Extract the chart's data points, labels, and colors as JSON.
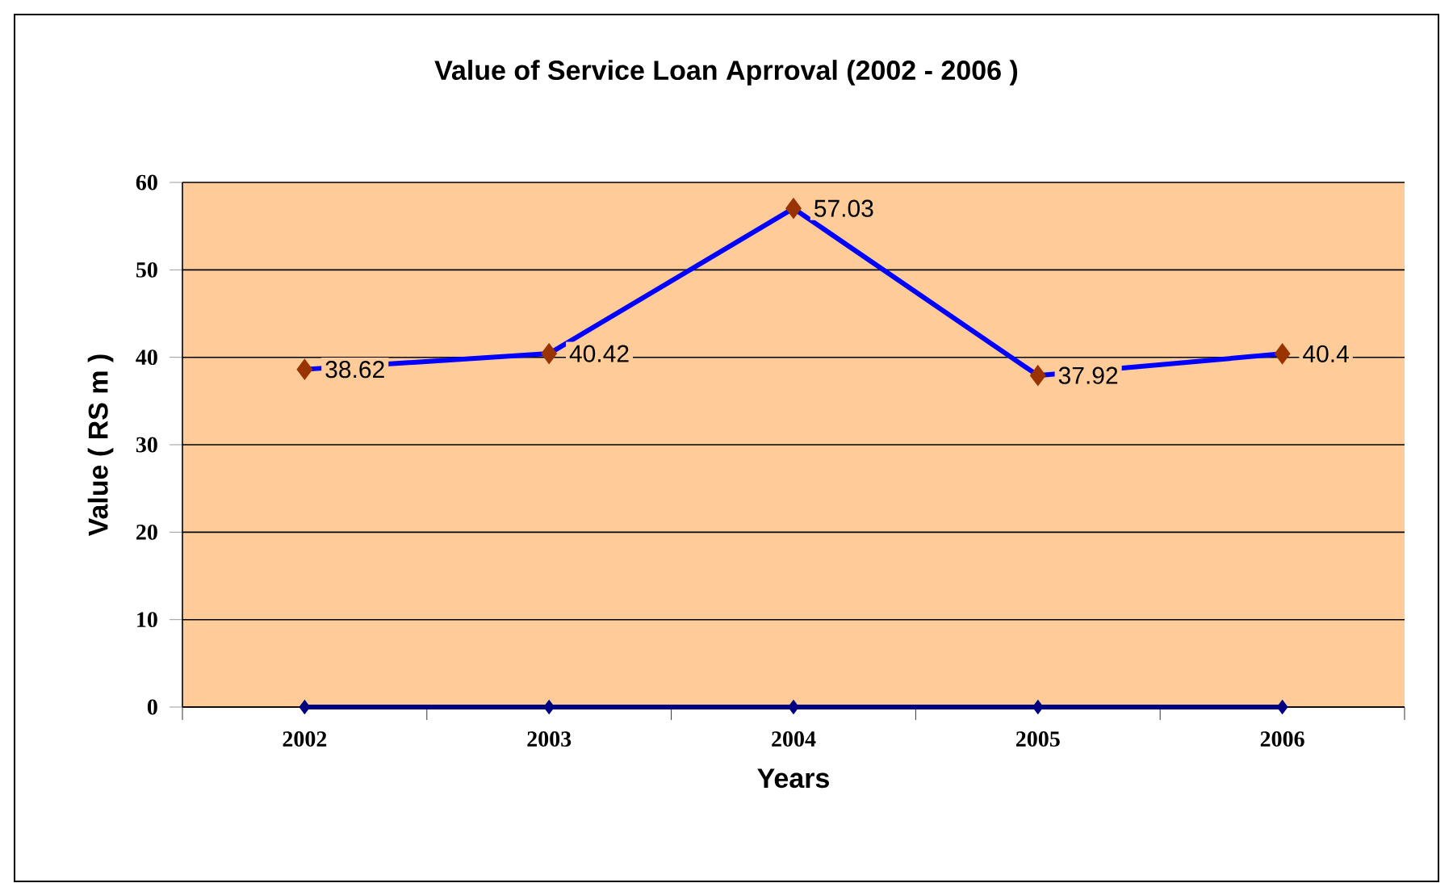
{
  "chart_data": {
    "type": "line",
    "title": "Value of Service Loan Aprroval (2002 - 2006 )",
    "xlabel": "Years",
    "ylabel": "Value ( RS m )",
    "categories": [
      "2002",
      "2003",
      "2004",
      "2005",
      "2006"
    ],
    "series": [
      {
        "color": "#0000ff",
        "colors": [
          "#993300",
          "#993300",
          "#993300",
          "#993300",
          "#993300"
        ],
        "values": [
          38.62,
          40.42,
          57.03,
          37.92,
          40.4
        ],
        "value_labels": [
          "38.62",
          "40.42",
          "57.03",
          "37.92",
          "40.4"
        ]
      },
      {
        "color": "#000080",
        "colors": [
          "#000080",
          "#000080",
          "#000080",
          "#000080",
          "#000080"
        ],
        "values": [
          0,
          0,
          0,
          0,
          0
        ]
      }
    ],
    "ylim": [
      0,
      60
    ],
    "yticks": [
      0,
      10,
      20,
      30,
      40,
      50,
      60
    ],
    "grid": "y",
    "marker": "diamond",
    "line_style": "solid"
  }
}
